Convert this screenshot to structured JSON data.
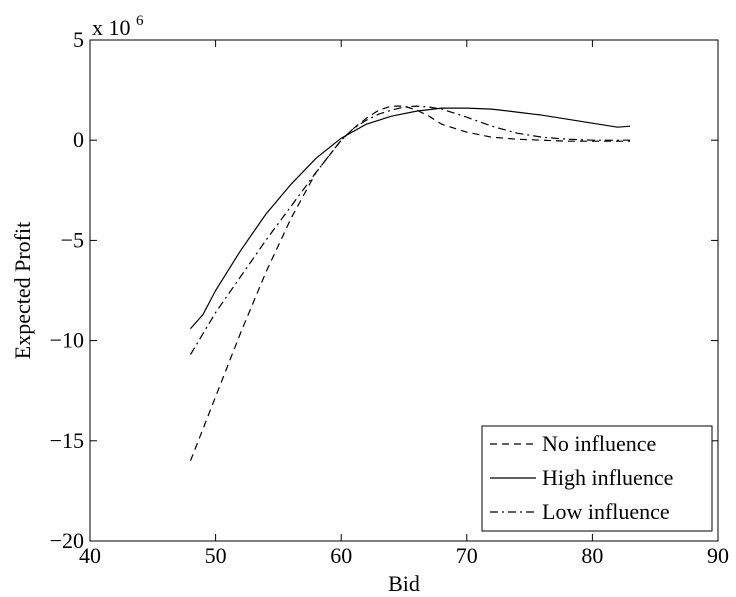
{
  "chart_data": {
    "type": "line",
    "title": "",
    "xlabel": "Bid",
    "ylabel": "Expected Profit",
    "y_multiplier": {
      "base": "x 10",
      "exponent": "6"
    },
    "xlim": [
      40,
      90
    ],
    "ylim": [
      -20,
      5
    ],
    "x_ticks": [
      40,
      50,
      60,
      70,
      80,
      90
    ],
    "y_ticks": [
      -20,
      -15,
      -10,
      -5,
      0,
      5
    ],
    "grid": false,
    "legend_position": "bottom-right",
    "series": [
      {
        "name": "No influence",
        "dash": "dashed",
        "x": [
          48,
          50,
          52,
          54,
          56,
          58,
          60,
          61,
          62,
          63,
          64,
          65,
          66,
          67,
          68,
          70,
          72,
          74,
          76,
          78,
          80,
          83
        ],
        "y": [
          -16.0,
          -12.8,
          -9.6,
          -6.6,
          -3.9,
          -1.6,
          0.0,
          0.6,
          1.1,
          1.5,
          1.7,
          1.7,
          1.5,
          1.2,
          0.8,
          0.4,
          0.15,
          0.05,
          0.0,
          -0.05,
          -0.05,
          -0.05
        ]
      },
      {
        "name": "High influence",
        "dash": "solid",
        "x": [
          48,
          49,
          50,
          52,
          54,
          56,
          58,
          60,
          62,
          64,
          66,
          68,
          70,
          72,
          74,
          76,
          78,
          80,
          82,
          83
        ],
        "y": [
          -9.4,
          -8.7,
          -7.5,
          -5.5,
          -3.7,
          -2.2,
          -0.9,
          0.1,
          0.8,
          1.2,
          1.45,
          1.6,
          1.6,
          1.55,
          1.4,
          1.25,
          1.05,
          0.85,
          0.65,
          0.7
        ]
      },
      {
        "name": "Low influence",
        "dash": "dashdot",
        "x": [
          48,
          50,
          52,
          54,
          56,
          58,
          60,
          61,
          62,
          63,
          64,
          65,
          66,
          67,
          68,
          69,
          70,
          72,
          74,
          76,
          78,
          80,
          83
        ],
        "y": [
          -10.7,
          -8.6,
          -6.8,
          -5.0,
          -3.3,
          -1.6,
          0.0,
          0.6,
          1.0,
          1.3,
          1.5,
          1.65,
          1.7,
          1.65,
          1.55,
          1.35,
          1.15,
          0.7,
          0.35,
          0.15,
          0.05,
          0.0,
          0.0
        ]
      }
    ]
  }
}
